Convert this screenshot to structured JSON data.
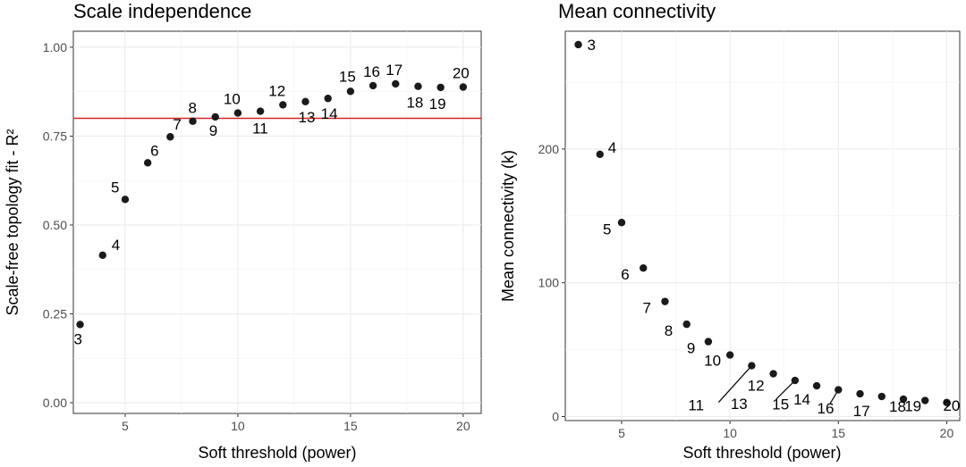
{
  "chart_data": [
    {
      "type": "scatter",
      "title": "Scale independence",
      "xlabel": "Soft threshold (power)",
      "ylabel": "Scale-free topology fit - R²",
      "xlim": [
        2.7,
        20.8
      ],
      "ylim": [
        -0.03,
        1.045
      ],
      "xticks": [
        5,
        10,
        15,
        20
      ],
      "yticks": [
        0.0,
        0.25,
        0.5,
        0.75,
        1.0
      ],
      "ytick_labels": [
        "0.00",
        "0.25",
        "0.50",
        "0.75",
        "1.00"
      ],
      "hline": {
        "y": 0.8,
        "color": "#d62728"
      },
      "grid": true,
      "points": [
        {
          "x": 3,
          "y": 0.22,
          "label": "3"
        },
        {
          "x": 4,
          "y": 0.415,
          "label": "4"
        },
        {
          "x": 5,
          "y": 0.572,
          "label": "5"
        },
        {
          "x": 6,
          "y": 0.675,
          "label": "6"
        },
        {
          "x": 7,
          "y": 0.748,
          "label": "7"
        },
        {
          "x": 8,
          "y": 0.792,
          "label": "8"
        },
        {
          "x": 9,
          "y": 0.804,
          "label": "9"
        },
        {
          "x": 10,
          "y": 0.815,
          "label": "10"
        },
        {
          "x": 11,
          "y": 0.82,
          "label": "11"
        },
        {
          "x": 12,
          "y": 0.838,
          "label": "12"
        },
        {
          "x": 13,
          "y": 0.847,
          "label": "13"
        },
        {
          "x": 14,
          "y": 0.856,
          "label": "14"
        },
        {
          "x": 15,
          "y": 0.876,
          "label": "15"
        },
        {
          "x": 16,
          "y": 0.892,
          "label": "16"
        },
        {
          "x": 17,
          "y": 0.897,
          "label": "17"
        },
        {
          "x": 18,
          "y": 0.89,
          "label": "18"
        },
        {
          "x": 19,
          "y": 0.887,
          "label": "19"
        },
        {
          "x": 20,
          "y": 0.888,
          "label": "20"
        }
      ]
    },
    {
      "type": "scatter",
      "title": "Mean connectivity",
      "xlabel": "Soft threshold (power)",
      "ylabel": "Mean connectivity (k)",
      "xlim": [
        2.4,
        20.6
      ],
      "ylim": [
        -3,
        288
      ],
      "xticks": [
        5,
        10,
        15,
        20
      ],
      "yticks": [
        0,
        100,
        200
      ],
      "ytick_labels": [
        "0",
        "100",
        "200"
      ],
      "grid": true,
      "points": [
        {
          "x": 3,
          "y": 278,
          "label": "3"
        },
        {
          "x": 4,
          "y": 196,
          "label": "4"
        },
        {
          "x": 5,
          "y": 145,
          "label": "5"
        },
        {
          "x": 6,
          "y": 111,
          "label": "6"
        },
        {
          "x": 7,
          "y": 86,
          "label": "7"
        },
        {
          "x": 8,
          "y": 69,
          "label": "8"
        },
        {
          "x": 9,
          "y": 56,
          "label": "9"
        },
        {
          "x": 10,
          "y": 46,
          "label": "10"
        },
        {
          "x": 11,
          "y": 38,
          "label": "11"
        },
        {
          "x": 12,
          "y": 32,
          "label": "12"
        },
        {
          "x": 13,
          "y": 27,
          "label": "13"
        },
        {
          "x": 14,
          "y": 23,
          "label": "14"
        },
        {
          "x": 15,
          "y": 20,
          "label": "15"
        },
        {
          "x": 16,
          "y": 17,
          "label": "16"
        },
        {
          "x": 17,
          "y": 15,
          "label": "17"
        },
        {
          "x": 18,
          "y": 13,
          "label": "18"
        },
        {
          "x": 19,
          "y": 12,
          "label": "19"
        },
        {
          "x": 20,
          "y": 10.5,
          "label": "20"
        }
      ]
    }
  ]
}
